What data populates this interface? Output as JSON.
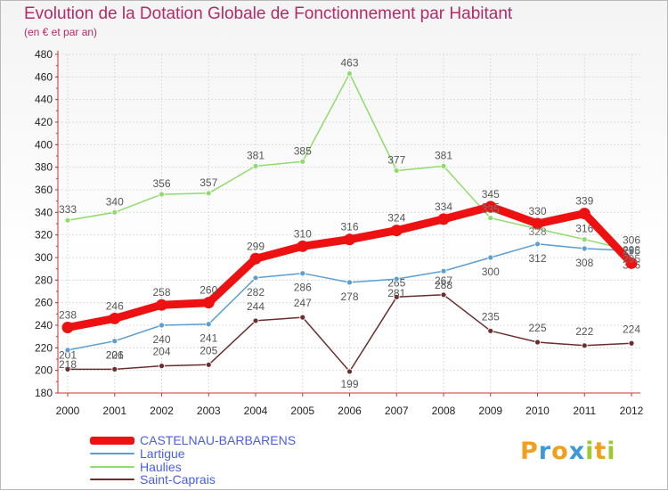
{
  "chart_data": {
    "type": "line",
    "title": "Evolution de la Dotation Globale de Fonctionnement par Habitant",
    "subtitle": "(en € et par an)",
    "x": [
      "2000",
      "2001",
      "2002",
      "2003",
      "2004",
      "2005",
      "2006",
      "2007",
      "2008",
      "2009",
      "2010",
      "2011",
      "2012"
    ],
    "ylim": [
      180,
      480
    ],
    "yticks": [
      180,
      200,
      220,
      240,
      260,
      280,
      300,
      320,
      340,
      360,
      380,
      400,
      420,
      440,
      460,
      480
    ],
    "grid": true,
    "legend_position": "bottom-left",
    "series": [
      {
        "name": "Saint-Caprais",
        "color": "#6b2d2d",
        "values": [
          201,
          201,
          204,
          205,
          244,
          247,
          199,
          265,
          267,
          235,
          225,
          222,
          224
        ]
      },
      {
        "name": "Haulies",
        "color": "#8fdc6b",
        "values": [
          333,
          340,
          356,
          357,
          381,
          385,
          463,
          377,
          381,
          335,
          null,
          316,
          306
        ]
      },
      {
        "name": "Lartigue",
        "color": "#5a9fd4",
        "values": [
          218,
          226,
          240,
          241,
          282,
          286,
          278,
          281,
          288,
          300,
          312,
          308,
          306
        ]
      },
      {
        "name": "CASTELNAU-BARBARENS",
        "color": "#ee1111",
        "values": [
          238,
          246,
          258,
          260,
          299,
          310,
          316,
          324,
          334,
          345,
          330,
          339,
          295
        ]
      }
    ],
    "overlap_labels": [
      "335",
      "328",
      "298",
      "295"
    ]
  },
  "legend": [
    "CASTELNAU-BARBARENS",
    "Lartigue",
    "Haulies",
    "Saint-Caprais"
  ],
  "logo": {
    "letters": [
      "P",
      "r",
      "o",
      "x",
      "i",
      "t",
      "i"
    ],
    "colors": [
      "#f0a020",
      "#3c9ad8",
      "#f0a020",
      "#3c9ad8",
      "#a0c832",
      "#f0a020",
      "#a0c832"
    ]
  }
}
